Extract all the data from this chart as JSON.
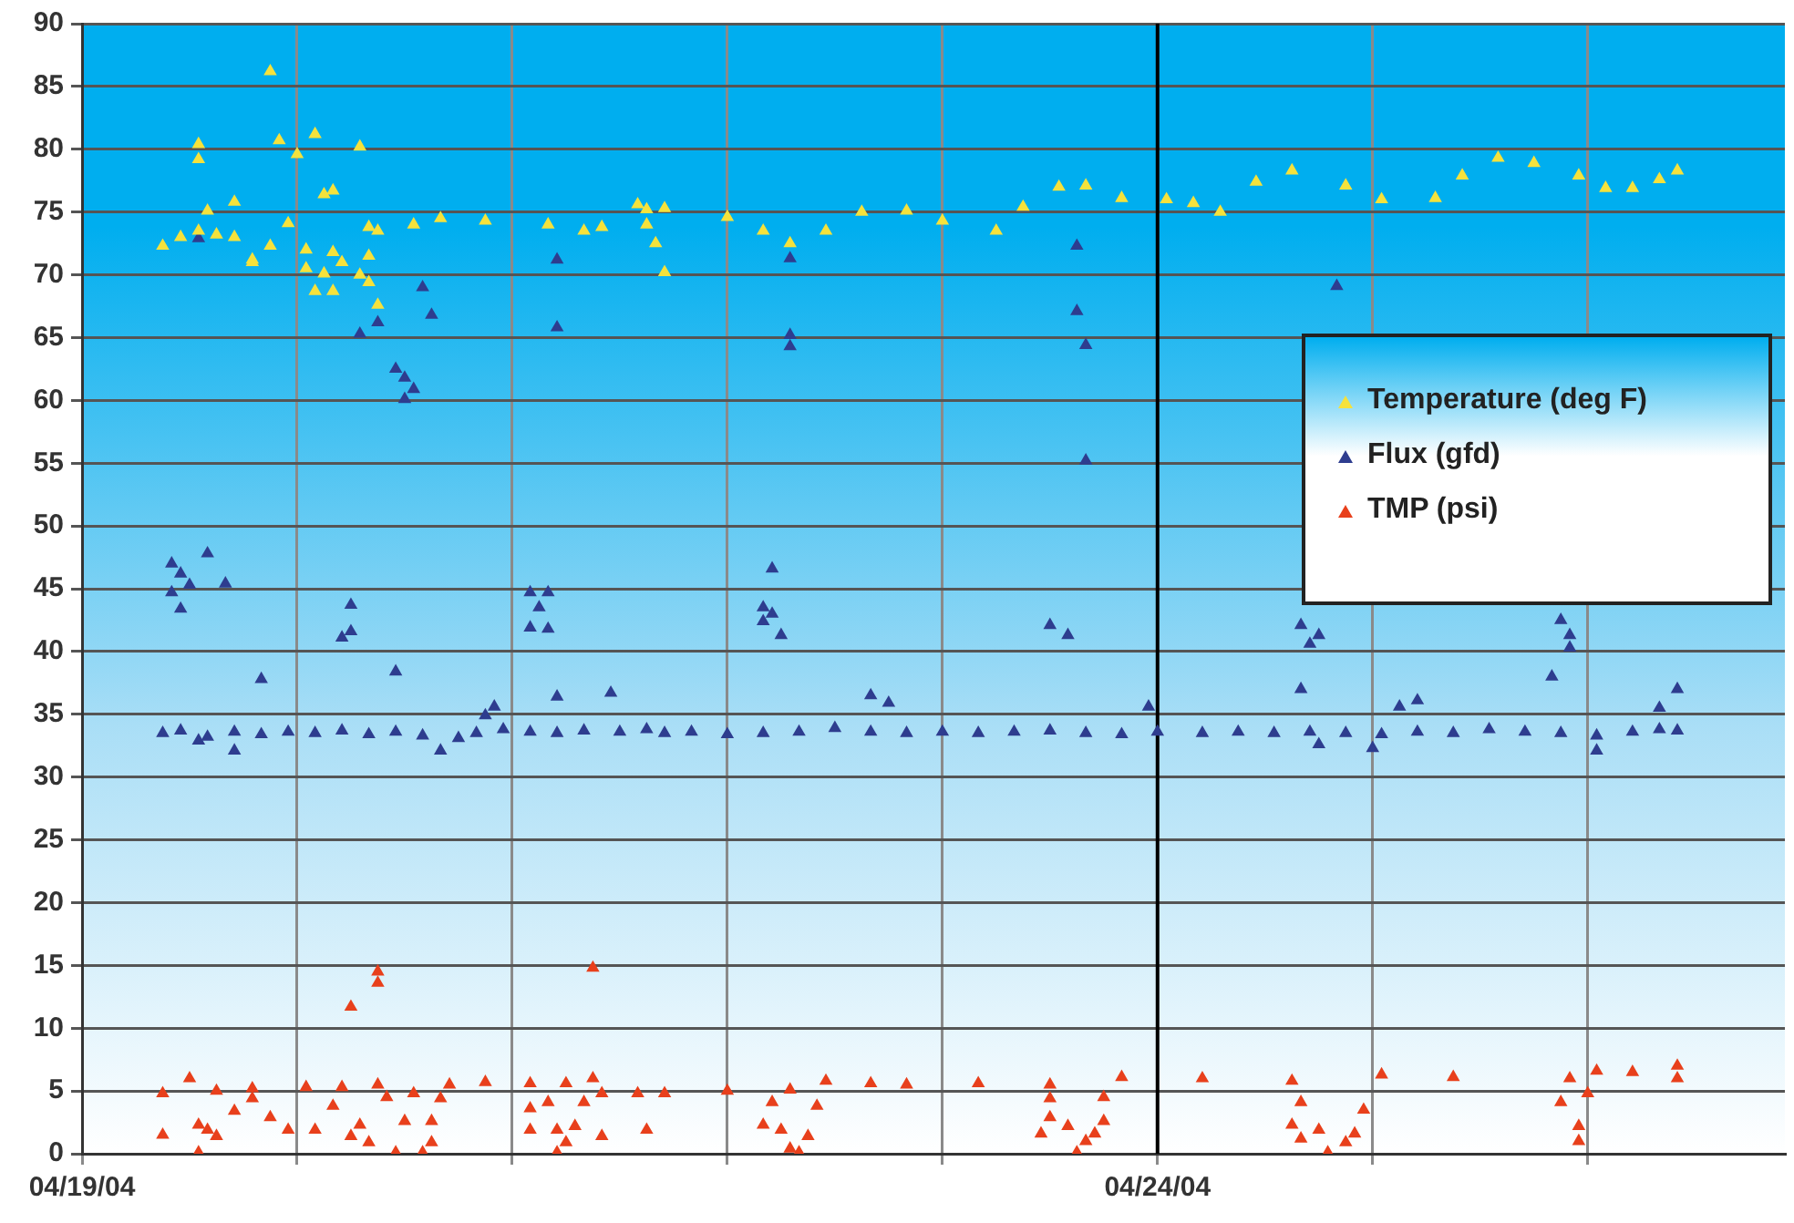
{
  "chart_data": {
    "type": "scatter",
    "marker": "triangle",
    "grid": true,
    "legend": "right",
    "xlim": [
      "--04-19T00:00",
      "--04-26T22:00"
    ],
    "xticks": [
      {
        "value": "--04-19",
        "label": "04/19/04"
      },
      {
        "value": "--04-20",
        "label": null
      },
      {
        "value": "--04-21",
        "label": null
      },
      {
        "value": "--04-22",
        "label": null
      },
      {
        "value": "--04-23",
        "label": null
      },
      {
        "value": "--04-24",
        "label": "04/24/04"
      },
      {
        "value": "--04-25",
        "label": null
      },
      {
        "value": "--04-26",
        "label": null
      }
    ],
    "ylim": [
      0,
      90
    ],
    "yticks": [
      0,
      5,
      10,
      15,
      20,
      25,
      30,
      35,
      40,
      45,
      50,
      55,
      60,
      65,
      70,
      75,
      80,
      85,
      90
    ],
    "ref_lines": [
      {
        "axis": "x",
        "value": "--04-24",
        "color": "#000000"
      }
    ],
    "series": [
      {
        "name": "Temperature (deg F)",
        "color": "#f5e23c",
        "x": [
          "--04-19T09:00",
          "--04-19T11:00",
          "--04-19T13:00",
          "--04-19T15:00",
          "--04-19T17:00",
          "--04-19T21:00",
          "--04-20T01:00",
          "--04-20T04:00",
          "--04-20T08:00",
          "--04-20T09:00",
          "--04-20T13:00",
          "--04-20T16:00",
          "--04-20T21:00",
          "--04-21T04:00",
          "--04-21T08:00",
          "--04-21T10:00",
          "--04-21T14:00",
          "--04-21T15:00",
          "--04-21T15:00",
          "--04-21T16:00",
          "--04-21T17:00",
          "--04-21T17:00",
          "--04-22T00:00",
          "--04-22T04:00",
          "--04-22T07:00",
          "--04-22T11:00",
          "--04-22T15:00",
          "--04-22T20:00",
          "--04-23T00:00",
          "--04-23T06:00",
          "--04-23T09:00",
          "--04-23T13:00",
          "--04-23T16:00",
          "--04-23T20:00",
          "--04-24T01:00",
          "--04-24T04:00",
          "--04-24T07:00",
          "--04-24T11:00",
          "--04-24T15:00",
          "--04-24T21:00",
          "--04-25T01:00",
          "--04-25T07:00",
          "--04-25T10:00",
          "--04-25T14:00",
          "--04-25T18:00",
          "--04-25T23:00",
          "--04-26T02:00",
          "--04-26T05:00",
          "--04-26T08:00",
          "--04-26T10:00",
          "--04-19T13:00",
          "--04-19T13:00",
          "--04-19T21:00",
          "--04-19T22:00",
          "--04-20T02:00",
          "--04-20T00:00",
          "--04-20T07:00",
          "--04-20T04:00",
          "--04-20T03:00",
          "--04-19T17:00",
          "--04-19T14:00",
          "--04-20T08:00",
          "--04-19T23:00",
          "--04-19T19:00",
          "--04-20T02:00",
          "--04-20T04:00",
          "--04-20T07:00",
          "--04-20T08:00",
          "--04-20T09:00",
          "--04-20T03:00",
          "--04-19T19:00",
          "--04-20T01:00",
          "--04-20T05:00"
        ],
        "values": [
          72.3,
          73.0,
          73.5,
          73.2,
          73.0,
          72.3,
          72.0,
          71.8,
          71.5,
          73.5,
          74.0,
          74.5,
          74.3,
          74.0,
          73.5,
          73.8,
          75.6,
          75.2,
          74.0,
          72.5,
          70.2,
          75.3,
          74.6,
          73.5,
          72.5,
          73.5,
          75.0,
          75.1,
          74.3,
          73.5,
          75.4,
          77.0,
          77.1,
          76.1,
          76.0,
          75.7,
          75.0,
          77.4,
          78.3,
          77.1,
          76.0,
          76.1,
          77.9,
          79.3,
          78.9,
          77.9,
          76.9,
          76.9,
          77.6,
          78.3,
          80.4,
          79.2,
          86.2,
          80.7,
          81.2,
          79.6,
          80.2,
          76.7,
          76.4,
          75.8,
          75.1,
          73.8,
          74.1,
          71.0,
          68.7,
          68.7,
          70.0,
          69.4,
          67.6,
          70.1,
          71.2,
          70.5,
          71.0
        ]
      },
      {
        "name": "Flux (gfd)",
        "color": "#2e3d8f",
        "x": [
          "--04-19T09:00",
          "--04-19T11:00",
          "--04-19T14:00",
          "--04-19T17:00",
          "--04-19T20:00",
          "--04-19T23:00",
          "--04-20T02:00",
          "--04-20T05:00",
          "--04-20T08:00",
          "--04-20T11:00",
          "--04-20T14:00",
          "--04-20T18:00",
          "--04-20T20:00",
          "--04-20T23:00",
          "--04-21T02:00",
          "--04-21T05:00",
          "--04-21T08:00",
          "--04-21T12:00",
          "--04-21T15:00",
          "--04-21T17:00",
          "--04-21T20:00",
          "--04-22T00:00",
          "--04-22T04:00",
          "--04-22T08:00",
          "--04-22T12:00",
          "--04-22T16:00",
          "--04-22T20:00",
          "--04-23T00:00",
          "--04-23T04:00",
          "--04-23T08:00",
          "--04-23T12:00",
          "--04-23T16:00",
          "--04-23T20:00",
          "--04-24T00:00",
          "--04-24T05:00",
          "--04-24T09:00",
          "--04-24T13:00",
          "--04-24T17:00",
          "--04-24T21:00",
          "--04-25T01:00",
          "--04-25T05:00",
          "--04-25T09:00",
          "--04-25T13:00",
          "--04-25T17:00",
          "--04-25T21:00",
          "--04-26T01:00",
          "--04-26T05:00",
          "--04-26T08:00",
          "--04-26T10:00",
          "--04-19T10:00",
          "--04-19T11:00",
          "--04-19T10:00",
          "--04-19T12:00",
          "--04-19T11:00",
          "--04-19T14:00",
          "--04-19T16:00",
          "--04-19T20:00",
          "--04-20T05:00",
          "--04-20T06:00",
          "--04-20T06:00",
          "--04-20T11:00",
          "--04-21T02:00",
          "--04-21T04:00",
          "--04-21T03:00",
          "--04-21T02:00",
          "--04-21T04:00",
          "--04-21T05:00",
          "--04-21T11:00",
          "--04-22T05:00",
          "--04-22T04:00",
          "--04-22T05:00",
          "--04-22T04:00",
          "--04-22T06:00",
          "--04-22T16:00",
          "--04-22T18:00",
          "--04-20T16:00",
          "--04-20T22:00",
          "--04-20T21:00",
          "--04-19T13:00",
          "--04-19T17:00",
          "--04-19T13:00",
          "--04-20T07:00",
          "--04-20T09:00",
          "--04-20T14:00",
          "--04-20T15:00",
          "--04-20T11:00",
          "--04-20T12:00",
          "--04-20T13:00",
          "--04-20T12:00",
          "--04-21T05:00",
          "--04-21T05:00",
          "--04-22T07:00",
          "--04-22T07:00",
          "--04-22T07:00",
          "--04-23T15:00",
          "--04-23T15:00",
          "--04-23T16:00",
          "--04-23T16:00",
          "--04-24T20:00",
          "--04-23T12:00",
          "--04-23T14:00",
          "--04-24T16:00",
          "--04-24T17:00",
          "--04-24T18:00",
          "--04-25T21:00",
          "--04-25T22:00",
          "--04-25T22:00",
          "--04-25T20:00",
          "--04-26T10:00",
          "--04-24T16:00",
          "--04-23T23:00",
          "--04-25T03:00",
          "--04-25T05:00",
          "--04-24T18:00",
          "--04-25T00:00",
          "--04-26T01:00",
          "--04-26T08:00"
        ],
        "values": [
          33.5,
          33.7,
          33.2,
          33.6,
          33.4,
          33.6,
          33.5,
          33.7,
          33.4,
          33.6,
          33.3,
          33.1,
          33.5,
          33.8,
          33.6,
          33.5,
          33.7,
          33.6,
          33.8,
          33.5,
          33.6,
          33.4,
          33.5,
          33.6,
          33.9,
          33.6,
          33.5,
          33.6,
          33.5,
          33.6,
          33.7,
          33.5,
          33.4,
          33.6,
          33.5,
          33.6,
          33.5,
          33.6,
          33.5,
          33.4,
          33.6,
          33.5,
          33.8,
          33.6,
          33.5,
          33.3,
          33.6,
          33.8,
          33.7,
          47.0,
          46.2,
          44.7,
          45.3,
          43.4,
          47.8,
          45.4,
          37.8,
          41.1,
          41.6,
          43.7,
          38.4,
          44.7,
          44.7,
          43.5,
          41.9,
          41.8,
          36.4,
          36.7,
          46.6,
          43.5,
          43.0,
          42.4,
          41.3,
          36.5,
          35.9,
          32.1,
          35.6,
          34.9,
          32.9,
          32.1,
          72.9,
          65.3,
          66.2,
          69.0,
          66.8,
          62.5,
          61.8,
          60.9,
          60.1,
          71.2,
          65.8,
          71.3,
          65.2,
          64.3,
          72.3,
          67.1,
          64.4,
          55.2,
          69.1,
          42.1,
          41.3,
          42.1,
          40.6,
          41.3,
          42.5,
          41.3,
          40.3,
          38.0,
          37.0,
          37.0,
          35.6,
          35.6,
          36.1,
          32.6,
          32.3,
          32.1,
          35.5
        ]
      },
      {
        "name": "TMP (psi)",
        "color": "#e8401c",
        "x": [
          "--04-19T09:00",
          "--04-19T12:00",
          "--04-19T15:00",
          "--04-19T19:00",
          "--04-20T01:00",
          "--04-20T05:00",
          "--04-20T09:00",
          "--04-20T10:00",
          "--04-20T13:00",
          "--04-20T17:00",
          "--04-20T21:00",
          "--04-21T02:00",
          "--04-21T06:00",
          "--04-21T09:00",
          "--04-21T10:00",
          "--04-21T14:00",
          "--04-21T17:00",
          "--04-22T00:00",
          "--04-22T07:00",
          "--04-22T11:00",
          "--04-22T16:00",
          "--04-22T20:00",
          "--04-23T04:00",
          "--04-23T12:00",
          "--04-23T20:00",
          "--04-24T05:00",
          "--04-24T15:00",
          "--04-25T01:00",
          "--04-25T09:00",
          "--04-25T22:00",
          "--04-26T01:00",
          "--04-26T05:00",
          "--04-26T10:00",
          "--04-26T10:00",
          "--04-20T06:00",
          "--04-20T09:00",
          "--04-20T09:00",
          "--04-21T09:00",
          "--04-19T09:00",
          "--04-19T13:00",
          "--04-19T13:00",
          "--04-19T15:00",
          "--04-19T17:00",
          "--04-19T19:00",
          "--04-19T21:00",
          "--04-19T23:00",
          "--04-20T02:00",
          "--04-20T04:00",
          "--04-20T06:00",
          "--04-20T07:00",
          "--04-20T08:00",
          "--04-20T11:00",
          "--04-20T12:00",
          "--04-20T14:00",
          "--04-20T15:00",
          "--04-20T15:00",
          "--04-20T16:00",
          "--04-19T14:00",
          "--04-21T02:00",
          "--04-21T02:00",
          "--04-21T04:00",
          "--04-21T05:00",
          "--04-21T05:00",
          "--04-21T06:00",
          "--04-21T07:00",
          "--04-21T08:00",
          "--04-21T10:00",
          "--04-21T15:00",
          "--04-22T04:00",
          "--04-22T05:00",
          "--04-22T06:00",
          "--04-22T07:00",
          "--04-22T08:00",
          "--04-22T09:00",
          "--04-22T10:00",
          "--04-23T11:00",
          "--04-23T12:00",
          "--04-23T12:00",
          "--04-23T14:00",
          "--04-23T15:00",
          "--04-23T16:00",
          "--04-23T17:00",
          "--04-23T18:00",
          "--04-23T18:00",
          "--04-24T15:00",
          "--04-24T16:00",
          "--04-24T16:00",
          "--04-24T18:00",
          "--04-24T19:00",
          "--04-24T21:00",
          "--04-24T22:00",
          "--04-24T23:00",
          "--04-25T21:00",
          "--04-25T23:00",
          "--04-25T23:00",
          "--04-26T00:00"
        ],
        "values": [
          4.8,
          6.0,
          5.0,
          5.2,
          5.3,
          5.3,
          5.5,
          4.5,
          4.8,
          5.5,
          5.7,
          5.6,
          5.6,
          6.0,
          4.8,
          4.8,
          4.8,
          5.0,
          5.1,
          5.8,
          5.6,
          5.5,
          5.6,
          5.5,
          6.1,
          6.0,
          5.8,
          6.3,
          6.1,
          6.0,
          6.6,
          6.5,
          7.0,
          6.0,
          11.7,
          14.5,
          13.6,
          14.8,
          1.5,
          0.1,
          2.3,
          1.4,
          3.4,
          4.4,
          2.9,
          1.9,
          1.9,
          3.8,
          1.4,
          2.3,
          0.9,
          0.1,
          2.6,
          0.1,
          0.9,
          2.6,
          4.4,
          1.9,
          1.9,
          3.6,
          4.1,
          1.9,
          0.1,
          0.9,
          2.2,
          4.1,
          1.4,
          1.9,
          2.3,
          4.1,
          1.9,
          0.4,
          0.1,
          1.4,
          3.8,
          1.6,
          2.9,
          4.4,
          2.2,
          0.1,
          1.0,
          1.6,
          2.6,
          4.5,
          2.3,
          1.2,
          4.1,
          1.9,
          0.1,
          0.9,
          1.6,
          3.5,
          4.1,
          2.2,
          1.0,
          4.8
        ]
      }
    ]
  }
}
